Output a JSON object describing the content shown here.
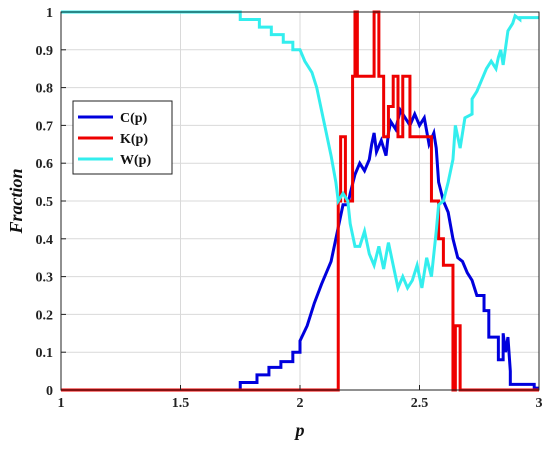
{
  "chart_data": {
    "type": "line",
    "title": "",
    "xlabel": "p",
    "ylabel": "Fraction",
    "xlim": [
      1,
      3
    ],
    "ylim": [
      0,
      1
    ],
    "x_ticks": [
      1,
      1.5,
      2,
      2.5,
      3
    ],
    "x_tick_labels": [
      "1",
      "1.5",
      "2",
      "2.5",
      "3"
    ],
    "y_ticks": [
      0,
      0.1,
      0.2,
      0.3,
      0.4,
      0.5,
      0.6,
      0.7,
      0.8,
      0.9,
      1
    ],
    "y_tick_labels": [
      "0",
      "0.1",
      "0.2",
      "0.3",
      "0.4",
      "0.5",
      "0.6",
      "0.7",
      "0.8",
      "0.9",
      "1"
    ],
    "grid": true,
    "legend_position": "upper-left",
    "series": [
      {
        "name": "C(p)",
        "color": "#0000dd",
        "step": true,
        "points": [
          [
            1.0,
            0.0
          ],
          [
            1.75,
            0.0
          ],
          [
            1.75,
            0.02
          ],
          [
            1.82,
            0.02
          ],
          [
            1.82,
            0.04
          ],
          [
            1.87,
            0.04
          ],
          [
            1.87,
            0.06
          ],
          [
            1.92,
            0.06
          ],
          [
            1.92,
            0.075
          ],
          [
            1.97,
            0.075
          ],
          [
            1.97,
            0.1
          ],
          [
            2.0,
            0.1
          ],
          [
            2.0,
            0.13
          ],
          [
            2.03,
            0.17
          ],
          [
            2.06,
            0.23
          ],
          [
            2.09,
            0.28
          ],
          [
            2.11,
            0.31
          ],
          [
            2.13,
            0.34
          ],
          [
            2.15,
            0.4
          ],
          [
            2.17,
            0.46
          ],
          [
            2.18,
            0.49
          ],
          [
            2.2,
            0.49
          ],
          [
            2.21,
            0.52
          ],
          [
            2.23,
            0.57
          ],
          [
            2.25,
            0.6
          ],
          [
            2.27,
            0.58
          ],
          [
            2.29,
            0.61
          ],
          [
            2.3,
            0.65
          ],
          [
            2.31,
            0.68
          ],
          [
            2.32,
            0.63
          ],
          [
            2.34,
            0.66
          ],
          [
            2.36,
            0.62
          ],
          [
            2.37,
            0.68
          ],
          [
            2.38,
            0.71
          ],
          [
            2.4,
            0.69
          ],
          [
            2.42,
            0.74
          ],
          [
            2.44,
            0.72
          ],
          [
            2.46,
            0.7
          ],
          [
            2.48,
            0.73
          ],
          [
            2.5,
            0.7
          ],
          [
            2.52,
            0.72
          ],
          [
            2.54,
            0.65
          ],
          [
            2.56,
            0.68
          ],
          [
            2.57,
            0.64
          ],
          [
            2.58,
            0.55
          ],
          [
            2.6,
            0.5
          ],
          [
            2.62,
            0.47
          ],
          [
            2.64,
            0.4
          ],
          [
            2.66,
            0.35
          ],
          [
            2.68,
            0.34
          ],
          [
            2.7,
            0.31
          ],
          [
            2.72,
            0.29
          ],
          [
            2.74,
            0.25
          ],
          [
            2.77,
            0.25
          ],
          [
            2.77,
            0.21
          ],
          [
            2.79,
            0.21
          ],
          [
            2.79,
            0.14
          ],
          [
            2.83,
            0.14
          ],
          [
            2.83,
            0.08
          ],
          [
            2.85,
            0.08
          ],
          [
            2.85,
            0.15
          ],
          [
            2.86,
            0.1
          ],
          [
            2.87,
            0.14
          ],
          [
            2.88,
            0.05
          ],
          [
            2.88,
            0.015
          ],
          [
            2.98,
            0.015
          ],
          [
            2.98,
            0.005
          ],
          [
            3.0,
            0.005
          ]
        ]
      },
      {
        "name": "K(p)",
        "color": "#ee0000",
        "step": true,
        "points": [
          [
            1.0,
            0.0
          ],
          [
            2.16,
            0.0
          ],
          [
            2.16,
            0.5
          ],
          [
            2.17,
            0.5
          ],
          [
            2.17,
            0.67
          ],
          [
            2.19,
            0.67
          ],
          [
            2.19,
            0.5
          ],
          [
            2.22,
            0.5
          ],
          [
            2.22,
            0.83
          ],
          [
            2.23,
            0.83
          ],
          [
            2.23,
            1.0
          ],
          [
            2.24,
            1.0
          ],
          [
            2.24,
            0.83
          ],
          [
            2.31,
            0.83
          ],
          [
            2.31,
            1.0
          ],
          [
            2.33,
            1.0
          ],
          [
            2.33,
            0.83
          ],
          [
            2.35,
            0.83
          ],
          [
            2.35,
            0.67
          ],
          [
            2.37,
            0.67
          ],
          [
            2.37,
            0.75
          ],
          [
            2.39,
            0.75
          ],
          [
            2.39,
            0.83
          ],
          [
            2.41,
            0.83
          ],
          [
            2.41,
            0.67
          ],
          [
            2.43,
            0.67
          ],
          [
            2.43,
            0.83
          ],
          [
            2.46,
            0.83
          ],
          [
            2.46,
            0.67
          ],
          [
            2.55,
            0.67
          ],
          [
            2.55,
            0.5
          ],
          [
            2.58,
            0.5
          ],
          [
            2.58,
            0.4
          ],
          [
            2.6,
            0.4
          ],
          [
            2.6,
            0.33
          ],
          [
            2.64,
            0.33
          ],
          [
            2.64,
            0.0
          ],
          [
            2.65,
            0.0
          ],
          [
            2.65,
            0.17
          ],
          [
            2.67,
            0.17
          ],
          [
            2.67,
            0.0
          ],
          [
            3.0,
            0.0
          ]
        ]
      },
      {
        "name": "W(p)",
        "color": "#33eeee",
        "step": true,
        "points": [
          [
            1.0,
            1.0
          ],
          [
            1.75,
            1.0
          ],
          [
            1.75,
            0.98
          ],
          [
            1.83,
            0.98
          ],
          [
            1.83,
            0.96
          ],
          [
            1.88,
            0.96
          ],
          [
            1.88,
            0.94
          ],
          [
            1.93,
            0.94
          ],
          [
            1.93,
            0.92
          ],
          [
            1.97,
            0.92
          ],
          [
            1.97,
            0.9
          ],
          [
            2.0,
            0.9
          ],
          [
            2.02,
            0.87
          ],
          [
            2.05,
            0.84
          ],
          [
            2.07,
            0.8
          ],
          [
            2.09,
            0.74
          ],
          [
            2.11,
            0.68
          ],
          [
            2.13,
            0.62
          ],
          [
            2.15,
            0.55
          ],
          [
            2.16,
            0.5
          ],
          [
            2.18,
            0.52
          ],
          [
            2.2,
            0.5
          ],
          [
            2.21,
            0.44
          ],
          [
            2.23,
            0.38
          ],
          [
            2.25,
            0.38
          ],
          [
            2.27,
            0.42
          ],
          [
            2.29,
            0.36
          ],
          [
            2.31,
            0.33
          ],
          [
            2.33,
            0.38
          ],
          [
            2.35,
            0.32
          ],
          [
            2.37,
            0.39
          ],
          [
            2.39,
            0.33
          ],
          [
            2.41,
            0.27
          ],
          [
            2.43,
            0.3
          ],
          [
            2.45,
            0.27
          ],
          [
            2.47,
            0.29
          ],
          [
            2.49,
            0.33
          ],
          [
            2.51,
            0.27
          ],
          [
            2.53,
            0.35
          ],
          [
            2.55,
            0.3
          ],
          [
            2.57,
            0.42
          ],
          [
            2.58,
            0.49
          ],
          [
            2.6,
            0.5
          ],
          [
            2.62,
            0.55
          ],
          [
            2.64,
            0.61
          ],
          [
            2.65,
            0.7
          ],
          [
            2.67,
            0.64
          ],
          [
            2.69,
            0.72
          ],
          [
            2.72,
            0.73
          ],
          [
            2.72,
            0.77
          ],
          [
            2.74,
            0.79
          ],
          [
            2.76,
            0.82
          ],
          [
            2.78,
            0.85
          ],
          [
            2.8,
            0.87
          ],
          [
            2.82,
            0.85
          ],
          [
            2.83,
            0.88
          ],
          [
            2.84,
            0.9
          ],
          [
            2.85,
            0.86
          ],
          [
            2.87,
            0.95
          ],
          [
            2.89,
            0.97
          ],
          [
            2.9,
            0.99
          ],
          [
            2.92,
            0.98
          ],
          [
            2.92,
            0.985
          ],
          [
            3.0,
            0.985
          ]
        ]
      }
    ]
  }
}
